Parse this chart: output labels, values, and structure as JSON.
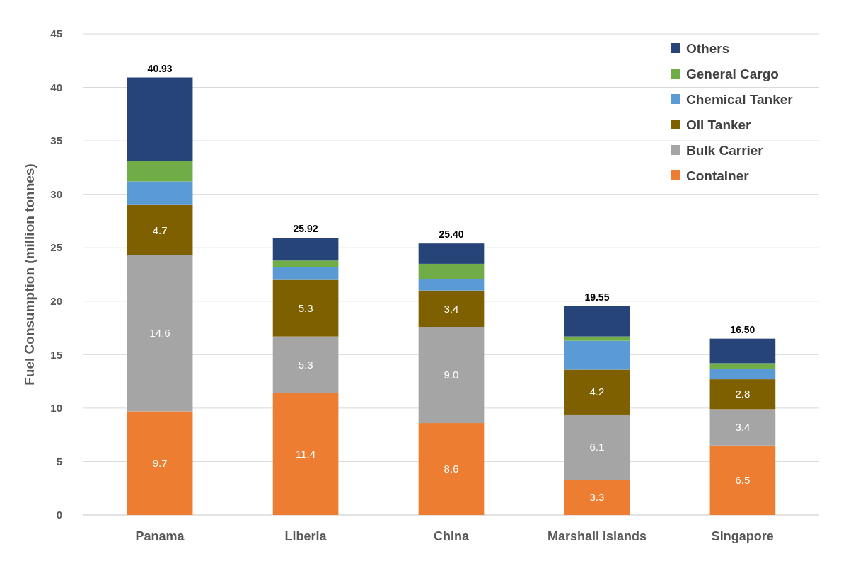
{
  "chart_data": {
    "type": "bar",
    "stacked": true,
    "ylabel": "Fuel Consumption (million tonnes)",
    "categories": [
      "Panama",
      "Liberia",
      "China",
      "Marshall Islands",
      "Singapore"
    ],
    "series": [
      {
        "name": "Container",
        "color": "#ed7d31",
        "values": [
          9.7,
          11.4,
          8.6,
          3.3,
          6.5
        ],
        "value_labels": [
          "9.7",
          "11.4",
          "8.6",
          "3.3",
          "6.5"
        ]
      },
      {
        "name": "Bulk Carrier",
        "color": "#a5a5a5",
        "values": [
          14.6,
          5.3,
          9.0,
          6.1,
          3.4
        ],
        "value_labels": [
          "14.6",
          "5.3",
          "9.0",
          "6.1",
          "3.4"
        ]
      },
      {
        "name": "Oil Tanker",
        "color": "#7f6000",
        "values": [
          4.7,
          5.3,
          3.4,
          4.2,
          2.8
        ],
        "value_labels": [
          "4.7",
          "5.3",
          "3.4",
          "4.2",
          "2.8"
        ]
      },
      {
        "name": "Chemical Tanker",
        "color": "#5b9bd5",
        "values": [
          2.2,
          1.2,
          1.1,
          2.7,
          1.0
        ]
      },
      {
        "name": "General Cargo",
        "color": "#70ad47",
        "values": [
          1.9,
          0.6,
          1.4,
          0.4,
          0.5
        ]
      },
      {
        "name": "Others",
        "color": "#264478",
        "values": [
          7.83,
          2.12,
          1.9,
          2.85,
          2.3
        ]
      }
    ],
    "totals": [
      "40.93",
      "25.92",
      "25.40",
      "19.55",
      "16.50"
    ],
    "ylim": [
      0,
      45
    ],
    "yticks": [
      0,
      5,
      10,
      15,
      20,
      25,
      30,
      35,
      40,
      45
    ],
    "grid": "y",
    "legend": "top right"
  }
}
